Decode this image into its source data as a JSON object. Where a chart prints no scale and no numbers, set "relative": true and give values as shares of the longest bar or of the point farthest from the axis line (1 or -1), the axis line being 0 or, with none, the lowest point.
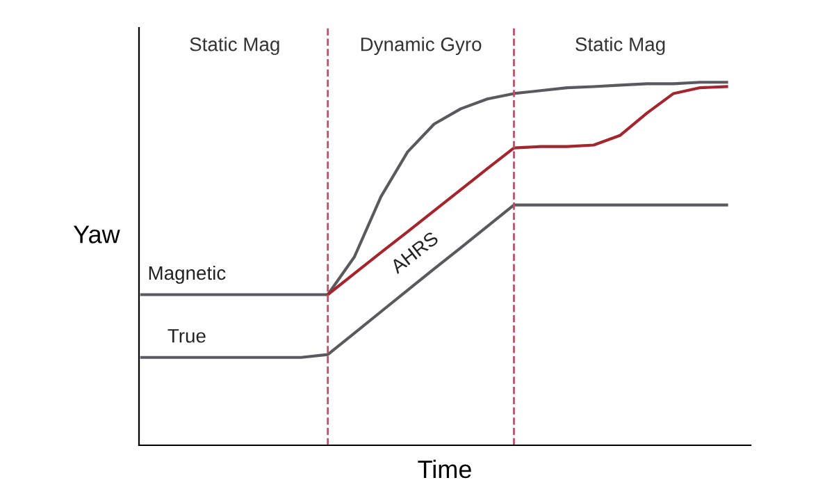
{
  "chart_data": {
    "type": "line",
    "relative": true,
    "xlabel": "Time",
    "ylabel": "Yaw",
    "categories": [
      null,
      null,
      null,
      null,
      null,
      null,
      null,
      null,
      null,
      null,
      null,
      null,
      null,
      null,
      null,
      null,
      null,
      null,
      null,
      null,
      null,
      null,
      null
    ],
    "series": [
      {
        "name": "Magnetic",
        "color": "#5a5a5e",
        "values": [
          0.415,
          0.415,
          0.415,
          0.415,
          0.415,
          0.415,
          0.415,
          0.415,
          0.519,
          0.685,
          0.808,
          0.885,
          0.927,
          0.954,
          0.969,
          0.977,
          0.985,
          0.988,
          0.992,
          0.996,
          0.996,
          1,
          1
        ]
      },
      {
        "name": "AHRS",
        "color": "#a3262f",
        "values": [
          null,
          null,
          null,
          null,
          null,
          null,
          null,
          0.415,
          0.473,
          0.531,
          0.588,
          0.646,
          0.704,
          0.762,
          0.819,
          0.823,
          0.823,
          0.827,
          0.854,
          0.915,
          0.969,
          0.985,
          0.988
        ]
      },
      {
        "name": "True",
        "color": "#5a5a5e",
        "values": [
          0.242,
          0.242,
          0.242,
          0.242,
          0.242,
          0.242,
          0.242,
          0.25,
          0.309,
          0.368,
          0.427,
          0.486,
          0.544,
          0.603,
          0.662,
          0.662,
          0.662,
          0.662,
          0.662,
          0.662,
          0.662,
          0.662,
          0.662
        ]
      }
    ],
    "annotations": [
      "Static Mag",
      "Dynamic Gyro",
      "Static Mag"
    ],
    "grid": false,
    "legend": false,
    "marker": "none",
    "line_style": "solid"
  }
}
